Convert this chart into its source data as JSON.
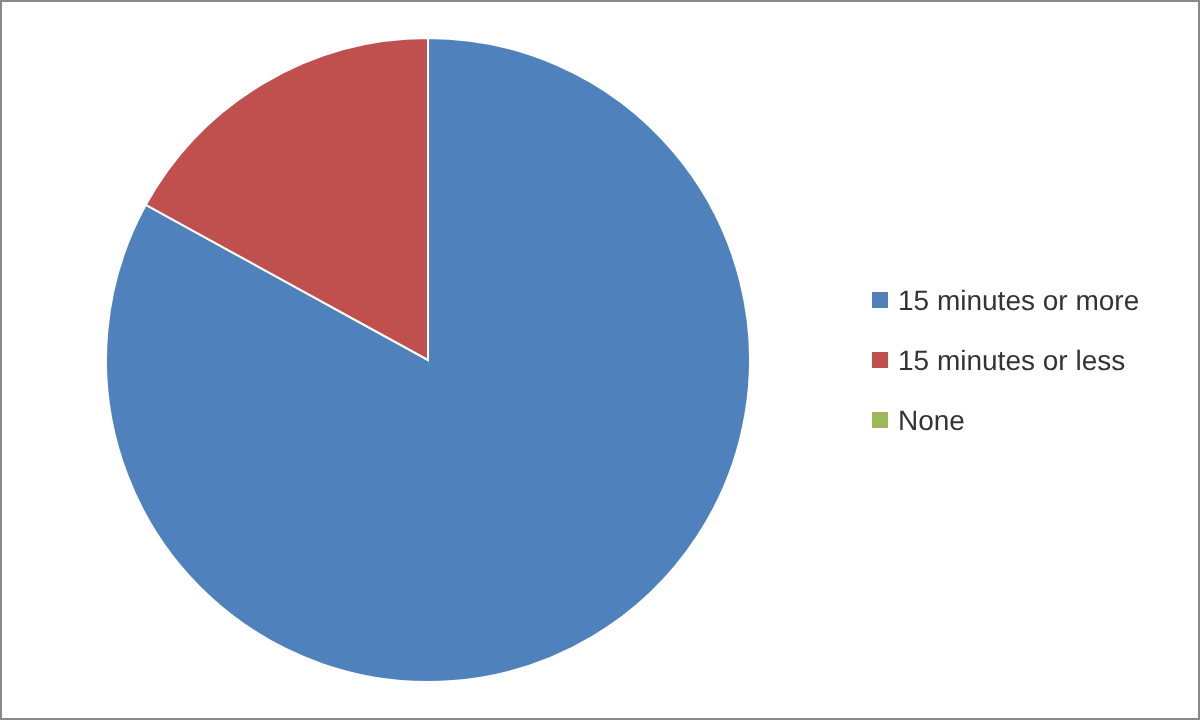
{
  "chart_data": {
    "type": "pie",
    "categories": [
      "15 minutes or more",
      "15 minutes or less",
      "None"
    ],
    "values": [
      83,
      17,
      0
    ],
    "colors": [
      "#4f81bd",
      "#c0504d",
      "#9bbb59"
    ],
    "legend": "right"
  }
}
